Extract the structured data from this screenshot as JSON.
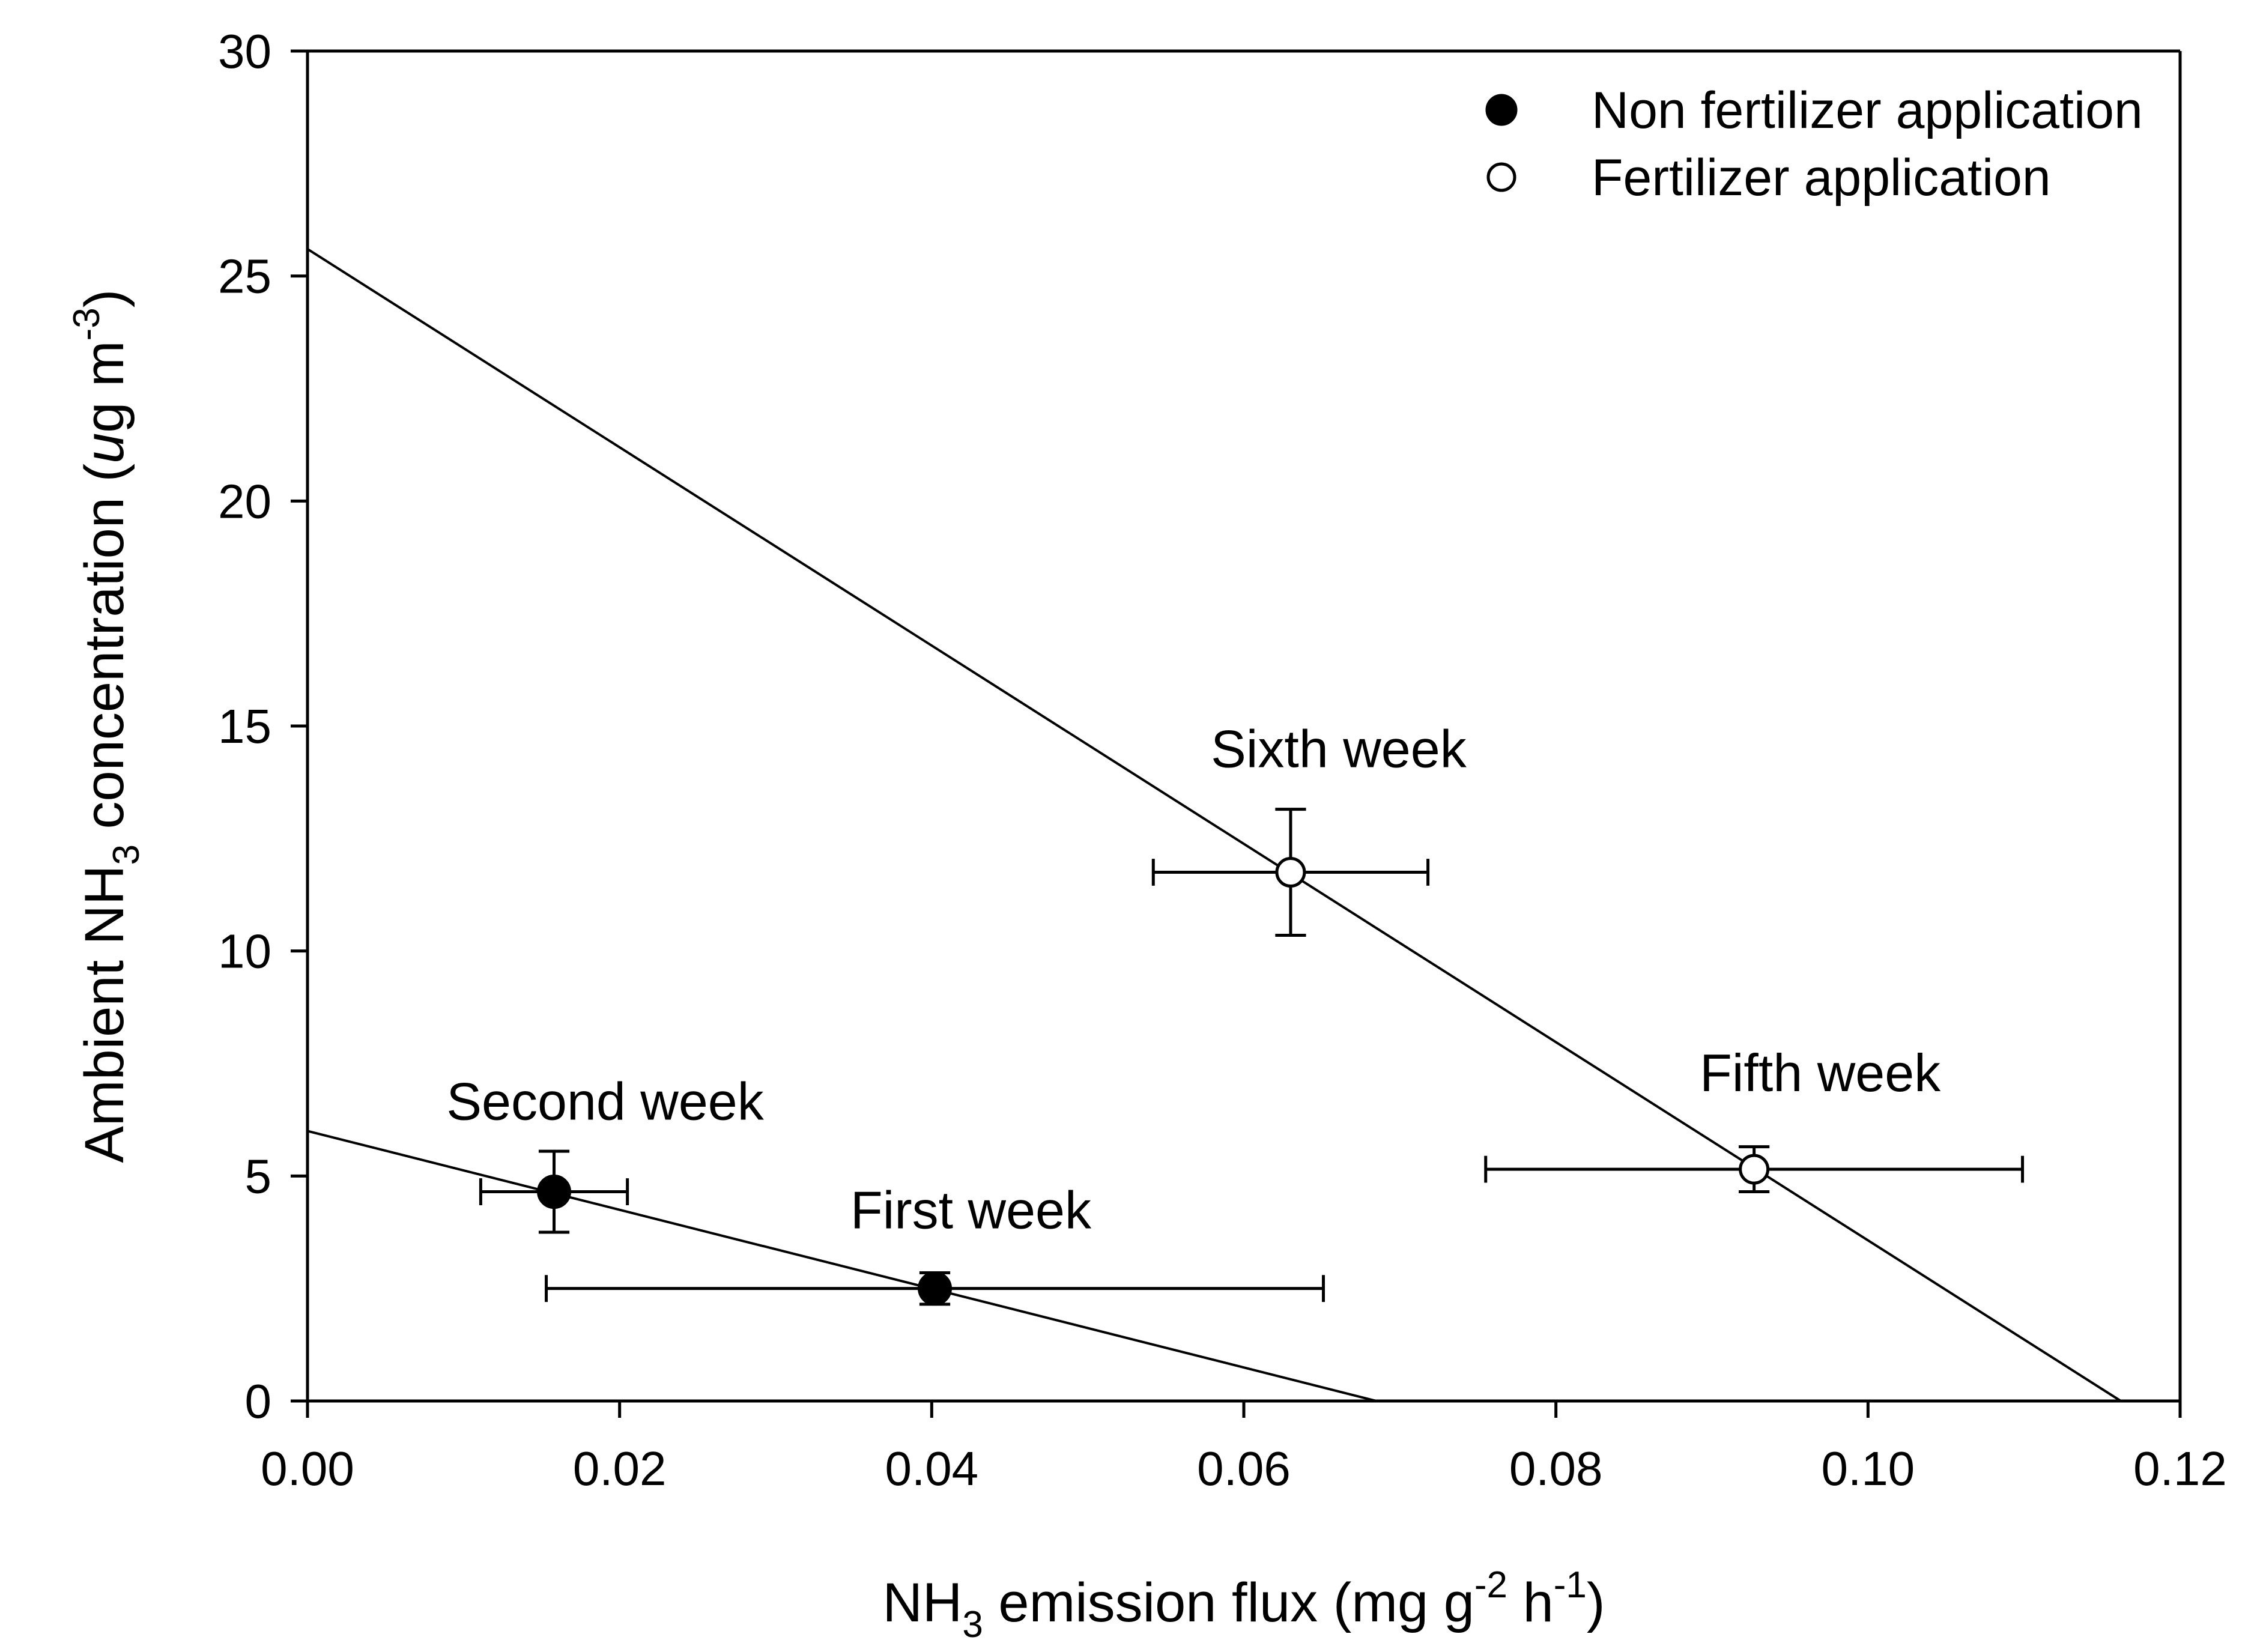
{
  "chart_data": {
    "type": "scatter",
    "title": "",
    "xlabel": {
      "base": "NH",
      "sub": "3",
      "mid1": " emission flux (mg g",
      "sup1": "-2",
      "mid2": " h",
      "sup2": "-1",
      "end": ")"
    },
    "ylabel": {
      "base": "Ambient NH",
      "sub": "3",
      "mid1": " concentration (",
      "italic": "u",
      "mid2": "g m",
      "sup": "-3",
      "end": ")"
    },
    "xlim": [
      0,
      0.12
    ],
    "ylim": [
      0,
      30
    ],
    "xticks": [
      0,
      0.02,
      0.04,
      0.06,
      0.08,
      0.1,
      0.12
    ],
    "xtick_labels": [
      "0.00",
      "0.02",
      "0.04",
      "0.06",
      "0.08",
      "0.10",
      "0.12"
    ],
    "yticks": [
      0,
      5,
      10,
      15,
      20,
      25,
      30
    ],
    "ytick_labels": [
      "0",
      "5",
      "10",
      "15",
      "20",
      "25",
      "30"
    ],
    "grid": false,
    "legend_position": "top-right",
    "series": [
      {
        "name": "Non fertilizer application",
        "marker": "filled-circle",
        "points": [
          {
            "label": "First week",
            "x": 0.0402,
            "y": 2.5,
            "xerr": 0.0249,
            "yerr": 0.35
          },
          {
            "label": "Second week",
            "x": 0.0158,
            "y": 4.65,
            "xerr": 0.0047,
            "yerr": 0.9
          }
        ],
        "fit_line": {
          "x": [
            0,
            0.0685
          ],
          "y": [
            6.0,
            0
          ]
        }
      },
      {
        "name": "Fertilizer application",
        "marker": "open-circle",
        "points": [
          {
            "label": "Sixth week",
            "x": 0.063,
            "y": 11.75,
            "xerr": 0.0088,
            "yerr": 1.4
          },
          {
            "label": "Fifth week",
            "x": 0.0927,
            "y": 5.15,
            "xerr": 0.0172,
            "yerr": 0.5
          }
        ],
        "fit_line": {
          "x": [
            0,
            0.1162
          ],
          "y": [
            25.6,
            0
          ]
        }
      }
    ]
  }
}
